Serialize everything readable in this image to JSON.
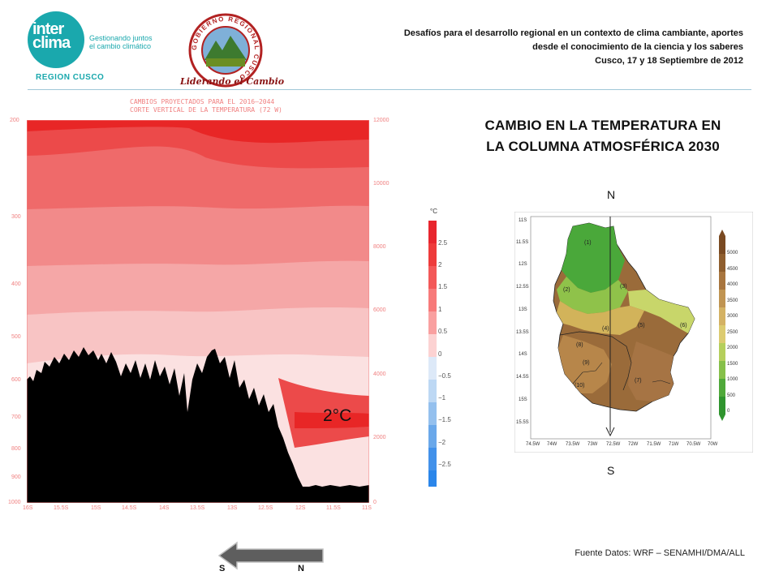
{
  "header": {
    "logo_word_1": "inter",
    "logo_word_2": "clima",
    "logo_tagline_1": "Gestionando juntos",
    "logo_tagline_2": "el cambio climático",
    "region": "REGION CUSCO",
    "emblem_ring_text": "GOBIERNO REGIONAL CUSCO",
    "emblem_caption": "Liderando el Cambio",
    "conference_line_1": "Desafíos para el desarrollo regional en un contexto de clima cambiante, aportes",
    "conference_line_2": "desde el conocimiento de la ciencia y los saberes",
    "conference_line_3": "Cusco, 17 y 18 Septiembre de 2012"
  },
  "main_title": {
    "line_1": "CAMBIO  EN LA TEMPERATURA EN",
    "line_2": "LA COLUMNA ATMOSFÉRICA 2030"
  },
  "cross_section": {
    "title_line_1": "CAMBIOS PROYECTADOS PARA EL 2016–2044",
    "title_line_2": "CORTE VERTICAL DE LA TEMPERATURA (72 W)",
    "left_ticks": [
      "200",
      "300",
      "400",
      "500",
      "600",
      "700",
      "800",
      "900",
      "1000"
    ],
    "right_ticks": [
      "12000",
      "10000",
      "8000",
      "6000",
      "4000",
      "2000",
      "0"
    ],
    "x_ticks": [
      "16S",
      "15.5S",
      "15S",
      "14.5S",
      "14S",
      "13.5S",
      "13S",
      "12.5S",
      "12S",
      "11.5S",
      "11S"
    ],
    "annotation": "2°C",
    "legend_unit": "°C",
    "legend_labels": [
      "2.5",
      "2",
      "1.5",
      "1",
      "0.5",
      "0",
      "−0.5",
      "−1",
      "−1.5",
      "−2",
      "−2.5"
    ],
    "colors": {
      "level_1": "#fbe1e1",
      "level_2": "#f8c4c4",
      "level_3": "#f5a7a7",
      "level_4": "#f28a8a",
      "level_5": "#ef6a6a",
      "level_6": "#ec4a4a",
      "level_7": "#e82626",
      "terrain": "#000000"
    }
  },
  "map": {
    "north_label": "N",
    "south_label": "S",
    "lat_ticks": [
      "11S",
      "11.5S",
      "12S",
      "12.5S",
      "13S",
      "13.5S",
      "14S",
      "14.5S",
      "15S",
      "15.5S"
    ],
    "lon_ticks": [
      "74.5W",
      "74W",
      "73.5W",
      "73W",
      "72.5W",
      "72W",
      "71.5W",
      "71W",
      "70.5W",
      "70W"
    ],
    "region_labels": [
      "(1)",
      "(2)",
      "(3)",
      "(4)",
      "(5)",
      "(6)",
      "(7)",
      "(8)",
      "(9)",
      "(10)"
    ],
    "colorbar_labels": [
      "5000",
      "4500",
      "4000",
      "3500",
      "3000",
      "2500",
      "2000",
      "1500",
      "1000",
      "500",
      "0"
    ]
  },
  "footer": {
    "source": "Fuente Datos: WRF – SENAMHI/DMA/ALL",
    "arrow_left_label": "S",
    "arrow_right_label": "N"
  }
}
